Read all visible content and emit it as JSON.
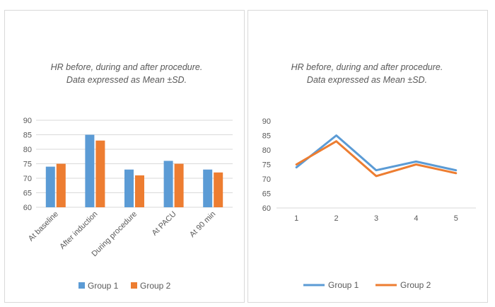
{
  "colors": {
    "group1": "#5b9bd5",
    "group2": "#ed7d31",
    "gridline": "#d9d9d9",
    "text": "#595959"
  },
  "chart_data": [
    {
      "type": "bar",
      "title": "HR before, during and after procedure. Data expressed  as Mean ±SD.",
      "title_lines": [
        "HR before, during and after procedure.",
        "Data expressed  as Mean ±SD."
      ],
      "categories": [
        "At baseline",
        "After induction",
        "During procedure",
        "At PACU",
        "At 90 min"
      ],
      "series": [
        {
          "name": "Group 1",
          "values": [
            74,
            85,
            73,
            76,
            73
          ]
        },
        {
          "name": "Group 2",
          "values": [
            75,
            83,
            71,
            75,
            72
          ]
        }
      ],
      "ylim": [
        60,
        90
      ],
      "yticks": [
        60,
        65,
        70,
        75,
        80,
        85,
        90
      ],
      "grid": true,
      "legend": "bottom"
    },
    {
      "type": "line",
      "title": "HR before, during and after procedure. Data expressed  as Mean ±SD.",
      "title_lines": [
        "HR before, during and after procedure.",
        "Data expressed  as Mean ±SD."
      ],
      "x": [
        1,
        2,
        3,
        4,
        5
      ],
      "series": [
        {
          "name": "Group 1",
          "values": [
            74,
            85,
            73,
            76,
            73
          ]
        },
        {
          "name": "Group 2",
          "values": [
            75,
            83,
            71,
            75,
            72
          ]
        }
      ],
      "ylim": [
        60,
        90
      ],
      "yticks": [
        60,
        65,
        70,
        75,
        80,
        85,
        90
      ],
      "grid": false,
      "legend": "bottom"
    }
  ]
}
